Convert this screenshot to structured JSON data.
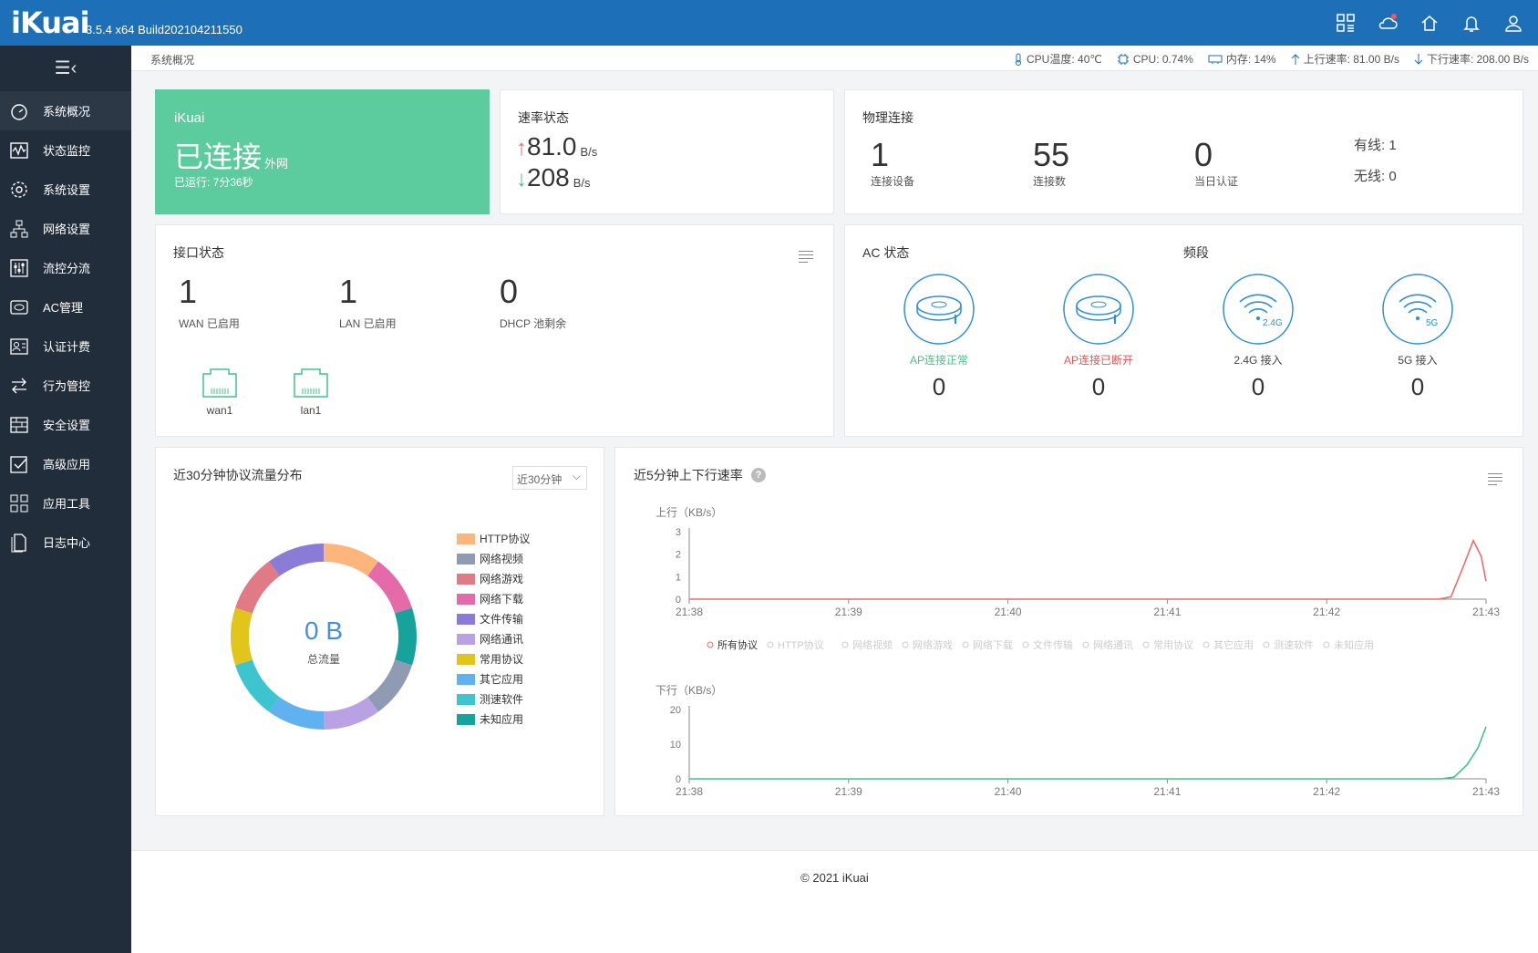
{
  "header": {
    "logo": "iKuai",
    "version": "3.5.4 x64 Build202104211550"
  },
  "sidebar": {
    "items": [
      {
        "label": "系统概况",
        "icon": "dashboard-icon"
      },
      {
        "label": "状态监控",
        "icon": "monitor-icon"
      },
      {
        "label": "系统设置",
        "icon": "gear-icon"
      },
      {
        "label": "网络设置",
        "icon": "network-icon"
      },
      {
        "label": "流控分流",
        "icon": "sliders-icon"
      },
      {
        "label": "AC管理",
        "icon": "ac-icon"
      },
      {
        "label": "认证计费",
        "icon": "user-card-icon"
      },
      {
        "label": "行为管控",
        "icon": "arrows-icon"
      },
      {
        "label": "安全设置",
        "icon": "firewall-icon"
      },
      {
        "label": "高级应用",
        "icon": "check-box-icon"
      },
      {
        "label": "应用工具",
        "icon": "apps-icon"
      },
      {
        "label": "日志中心",
        "icon": "document-icon"
      }
    ]
  },
  "subbar": {
    "breadcrumb": "系统概况",
    "cpu_temp": "CPU温度: 40℃",
    "cpu": "CPU: 0.74%",
    "mem": "内存: 14%",
    "up": "上行速率: 81.00 B/s",
    "down": "下行速率: 208.00 B/s"
  },
  "status_card": {
    "brand": "iKuai",
    "status": "已连接",
    "suffix": "外网",
    "runtime": "已运行: 7分36秒"
  },
  "rate_card": {
    "title": "速率状态",
    "up_value": "81.0",
    "down_value": "208",
    "unit": "B/s"
  },
  "physical": {
    "title": "物理连接",
    "devices": "1",
    "devices_label": "连接设备",
    "conns": "55",
    "conns_label": "连接数",
    "auth": "0",
    "auth_label": "当日认证",
    "wired": "有线: 1",
    "wireless": "无线: 0"
  },
  "iface": {
    "title": "接口状态",
    "wan": "1",
    "wan_label": "WAN 已启用",
    "lan": "1",
    "lan_label": "LAN 已启用",
    "dhcp": "0",
    "dhcp_label": "DHCP 池剩余",
    "port1": "wan1",
    "port2": "lan1"
  },
  "ac": {
    "title": "AC 状态",
    "band_title": "频段",
    "items": [
      {
        "label": "AP连接正常",
        "value": "0",
        "color": "#4cc08b"
      },
      {
        "label": "AP连接已断开",
        "value": "0",
        "color": "#e8534f"
      },
      {
        "label": "2.4G 接入",
        "value": "0",
        "color": "#444444",
        "badge": "2.4G"
      },
      {
        "label": "5G 接入",
        "value": "0",
        "color": "#444444",
        "badge": "5G"
      }
    ]
  },
  "protocol": {
    "title": "近30分钟协议流量分布",
    "select": "近30分钟",
    "total": "0 B",
    "total_label": "总流量",
    "legend": [
      {
        "name": "HTTP协议",
        "color": "#fdb57c"
      },
      {
        "name": "网络视频",
        "color": "#8e9bb3"
      },
      {
        "name": "网络游戏",
        "color": "#e07a84"
      },
      {
        "name": "网络下载",
        "color": "#e46aa9"
      },
      {
        "name": "文件传输",
        "color": "#8a7bd6"
      },
      {
        "name": "网络通讯",
        "color": "#b8a2e3"
      },
      {
        "name": "常用协议",
        "color": "#e1c51a"
      },
      {
        "name": "其它应用",
        "color": "#5fb1f0"
      },
      {
        "name": "测速软件",
        "color": "#3cc5cf"
      },
      {
        "name": "未知应用",
        "color": "#16a39b"
      }
    ]
  },
  "chart_data": [
    {
      "type": "line",
      "title": "近5分钟上下行速率",
      "ylabel": "上行（KB/s）",
      "x": [
        "21:38",
        "21:39",
        "21:40",
        "21:41",
        "21:42",
        "21:43"
      ],
      "ylim": [
        0,
        3
      ],
      "yticks": [
        0,
        1,
        2,
        3
      ],
      "series": [
        {
          "name": "所有协议",
          "color": "#ee6b6b",
          "points": [
            [
              0,
              0
            ],
            [
              4.7,
              0
            ],
            [
              4.78,
              0.1
            ],
            [
              4.86,
              1.5
            ],
            [
              4.92,
              2.6
            ],
            [
              4.97,
              1.9
            ],
            [
              5,
              0.8
            ]
          ]
        }
      ]
    },
    {
      "type": "line",
      "ylabel": "下行（KB/s）",
      "x": [
        "21:38",
        "21:39",
        "21:40",
        "21:41",
        "21:42",
        "21:43"
      ],
      "ylim": [
        0,
        20
      ],
      "yticks": [
        0,
        10,
        20
      ],
      "series": [
        {
          "name": "所有协议",
          "color": "#3cc48c",
          "points": [
            [
              0,
              0
            ],
            [
              4.72,
              0
            ],
            [
              4.8,
              0.5
            ],
            [
              4.88,
              4
            ],
            [
              4.95,
              9
            ],
            [
              5,
              15
            ]
          ]
        }
      ]
    }
  ],
  "chart_legend": [
    "所有协议",
    "HTTP协议",
    "网络视频",
    "网络游戏",
    "网络下载",
    "文件传输",
    "网络通讯",
    "常用协议",
    "其它应用",
    "测速软件",
    "未知应用"
  ],
  "footer": "© 2021 iKuai"
}
